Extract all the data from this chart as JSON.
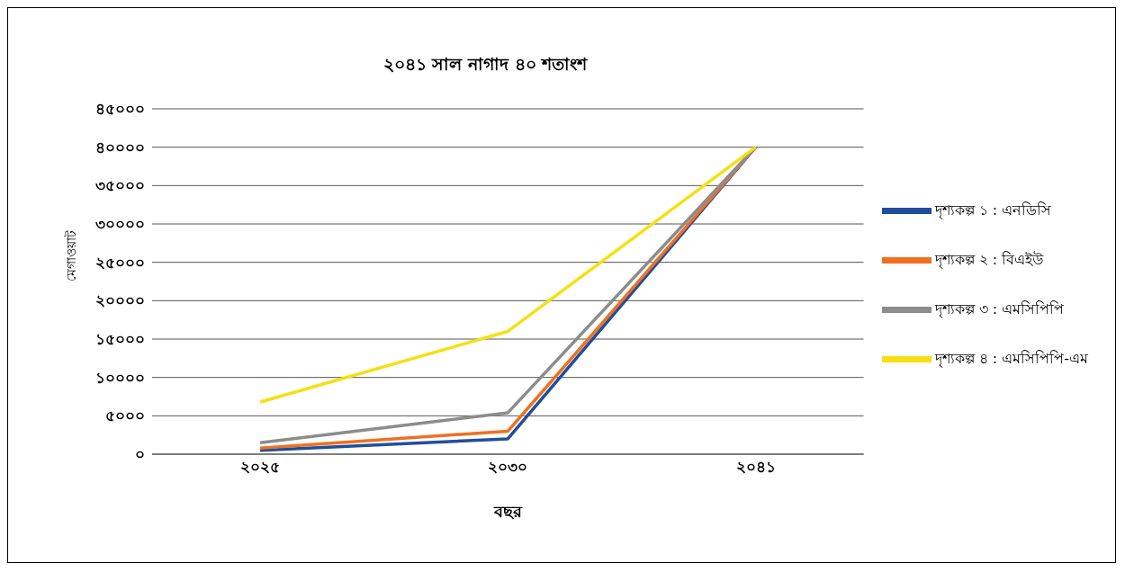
{
  "chart_data": {
    "type": "line",
    "title": "২০৪১ সাল নাগাদ ৪০ শতাংশ",
    "xlabel": "বছর",
    "ylabel": "মেগাওয়াট",
    "categories": [
      "২০২৫",
      "২০৩০",
      "২০৪১"
    ],
    "series": [
      {
        "name": "দৃশ্যকল্প ১ : এনডিসি",
        "color": "#1f4e9c",
        "values": [
          500,
          2000,
          40000
        ]
      },
      {
        "name": "দৃশ্যকল্প ২ : বিএইউ",
        "color": "#f07020",
        "values": [
          800,
          3000,
          40000
        ]
      },
      {
        "name": "দৃশ্যকল্প ৩ : এমসিপিপি",
        "color": "#8c8c8c",
        "values": [
          1500,
          5400,
          40000
        ]
      },
      {
        "name": "দৃশ্যকল্প ৪ : এমসিপিপি-এম",
        "color": "#f5e012",
        "values": [
          6800,
          16000,
          40000
        ]
      }
    ],
    "ylim": [
      0,
      45000
    ],
    "yticks": [
      {
        "value": 0,
        "label": "০"
      },
      {
        "value": 5000,
        "label": "৫০০০"
      },
      {
        "value": 10000,
        "label": "১০০০০"
      },
      {
        "value": 15000,
        "label": "১৫০০০"
      },
      {
        "value": 20000,
        "label": "২০০০০"
      },
      {
        "value": 25000,
        "label": "২৫০০০"
      },
      {
        "value": 30000,
        "label": "৩০০০০"
      },
      {
        "value": 35000,
        "label": "৩৫০০০"
      },
      {
        "value": 40000,
        "label": "৪০০০০"
      },
      {
        "value": 45000,
        "label": "৪৫০০০"
      }
    ],
    "grid": "y",
    "legend": "right",
    "marker": "none",
    "line_style": "solid"
  }
}
